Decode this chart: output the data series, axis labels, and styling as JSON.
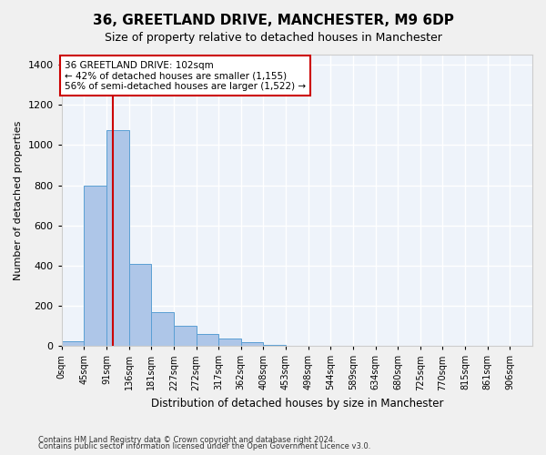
{
  "title": "36, GREETLAND DRIVE, MANCHESTER, M9 6DP",
  "subtitle": "Size of property relative to detached houses in Manchester",
  "xlabel": "Distribution of detached houses by size in Manchester",
  "ylabel": "Number of detached properties",
  "footnote1": "Contains HM Land Registry data © Crown copyright and database right 2024.",
  "footnote2": "Contains public sector information licensed under the Open Government Licence v3.0.",
  "bin_labels": [
    "0sqm",
    "45sqm",
    "91sqm",
    "136sqm",
    "181sqm",
    "227sqm",
    "272sqm",
    "317sqm",
    "362sqm",
    "408sqm",
    "453sqm",
    "498sqm",
    "544sqm",
    "589sqm",
    "634sqm",
    "680sqm",
    "725sqm",
    "770sqm",
    "815sqm",
    "861sqm",
    "906sqm"
  ],
  "bar_values": [
    25,
    800,
    1075,
    410,
    170,
    100,
    60,
    35,
    20,
    5,
    0,
    0,
    2,
    0,
    0,
    0,
    0,
    0,
    0,
    0
  ],
  "bar_color": "#aec6e8",
  "bar_edge_color": "#5a9fd4",
  "property_size": 102,
  "property_label": "36 GREETLAND DRIVE: 102sqm",
  "annotation_line1": "← 42% of detached houses are smaller (1,155)",
  "annotation_line2": "56% of semi-detached houses are larger (1,522) →",
  "red_line_color": "#cc0000",
  "annotation_box_edge": "#cc0000",
  "ylim": [
    0,
    1450
  ],
  "yticks": [
    0,
    200,
    400,
    600,
    800,
    1000,
    1200,
    1400
  ],
  "background_color": "#eef3fa",
  "grid_color": "#ffffff",
  "bin_width": 45
}
